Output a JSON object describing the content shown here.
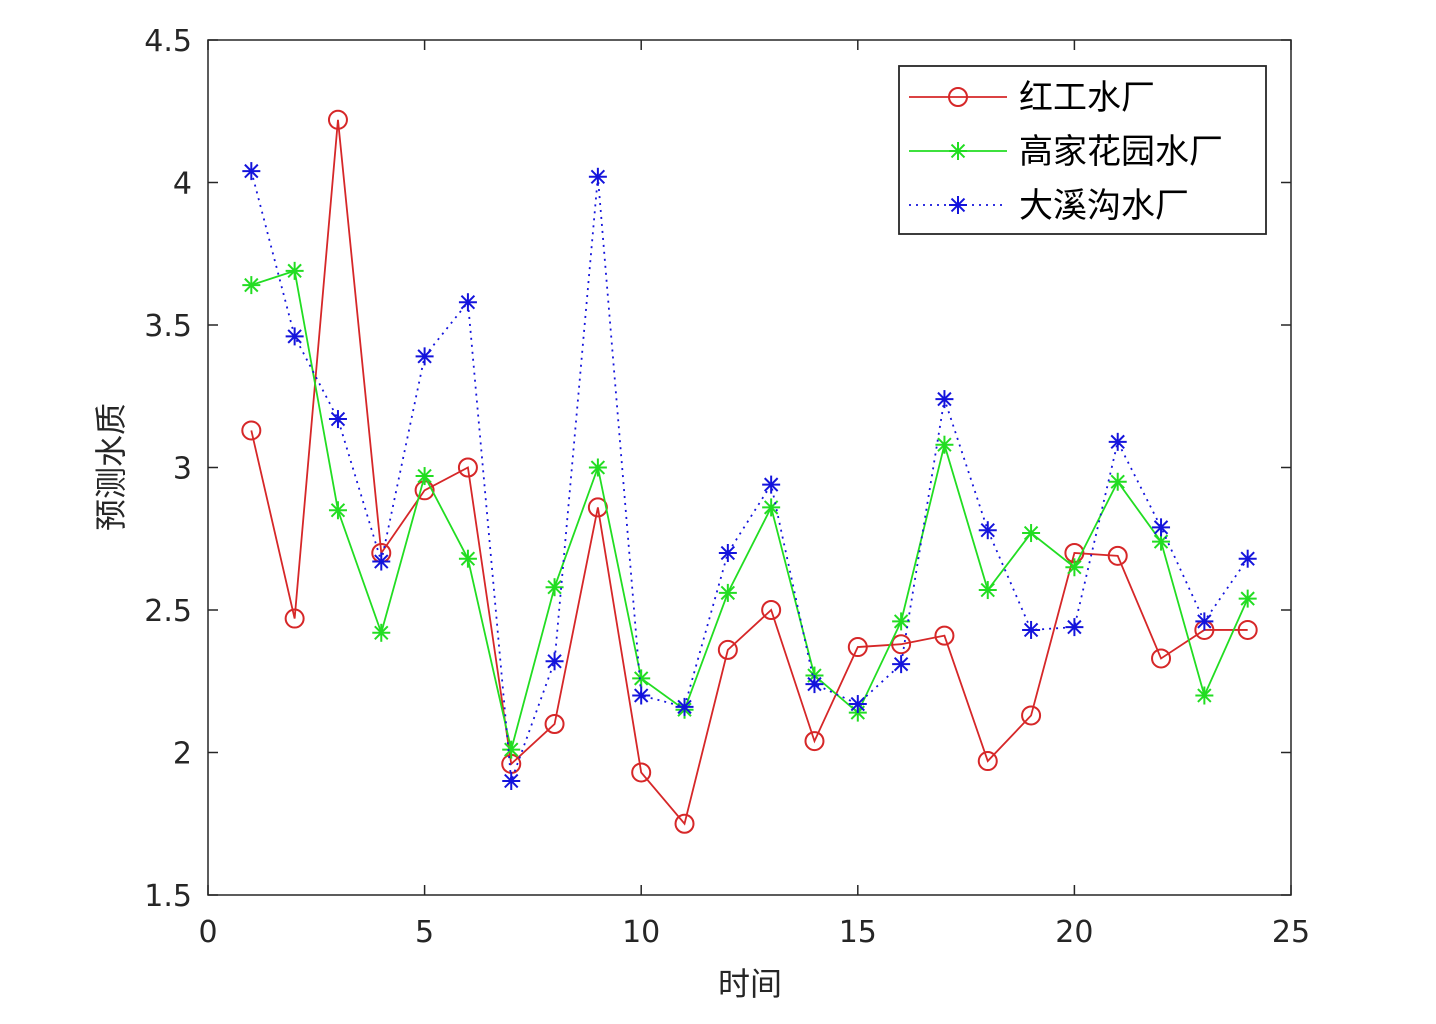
{
  "chart_data": {
    "type": "line",
    "title": "",
    "xlabel": "时间",
    "ylabel": "预测水质",
    "xlim": [
      0,
      25
    ],
    "ylim": [
      1.5,
      4.5
    ],
    "xticks": [
      "0",
      "5",
      "10",
      "15",
      "20",
      "25"
    ],
    "yticks": [
      "1.5",
      "2",
      "2.5",
      "3",
      "3.5",
      "4",
      "4.5"
    ],
    "legend_position": "top-right",
    "grid": false,
    "x": [
      1,
      2,
      3,
      4,
      5,
      6,
      7,
      8,
      9,
      10,
      11,
      12,
      13,
      14,
      15,
      16,
      17,
      18,
      19,
      20,
      21,
      22,
      23,
      24
    ],
    "series": [
      {
        "name": "红工水厂",
        "color": "#d62728",
        "marker": "circle",
        "line_style": "solid",
        "values": [
          3.13,
          2.47,
          4.22,
          2.7,
          2.92,
          3.0,
          1.96,
          2.1,
          2.86,
          1.93,
          1.75,
          2.36,
          2.5,
          2.04,
          2.37,
          2.38,
          2.41,
          1.97,
          2.13,
          2.7,
          2.69,
          2.33,
          2.43,
          2.43
        ]
      },
      {
        "name": "高家花园水厂",
        "color": "#22dd22",
        "marker": "asterisk",
        "line_style": "solid",
        "values": [
          3.64,
          3.69,
          2.85,
          2.42,
          2.97,
          2.68,
          2.01,
          2.58,
          3.0,
          2.26,
          2.15,
          2.56,
          2.86,
          2.27,
          2.14,
          2.46,
          3.08,
          2.57,
          2.77,
          2.65,
          2.95,
          2.74,
          2.2,
          2.54
        ]
      },
      {
        "name": "大溪沟水厂",
        "color": "#1414dc",
        "marker": "asterisk",
        "line_style": "dotted",
        "values": [
          4.04,
          3.46,
          3.17,
          2.67,
          3.39,
          3.58,
          1.9,
          2.32,
          4.02,
          2.2,
          2.16,
          2.7,
          2.94,
          2.24,
          2.17,
          2.31,
          3.24,
          2.78,
          2.43,
          2.44,
          3.09,
          2.79,
          2.46,
          2.68
        ]
      }
    ]
  }
}
